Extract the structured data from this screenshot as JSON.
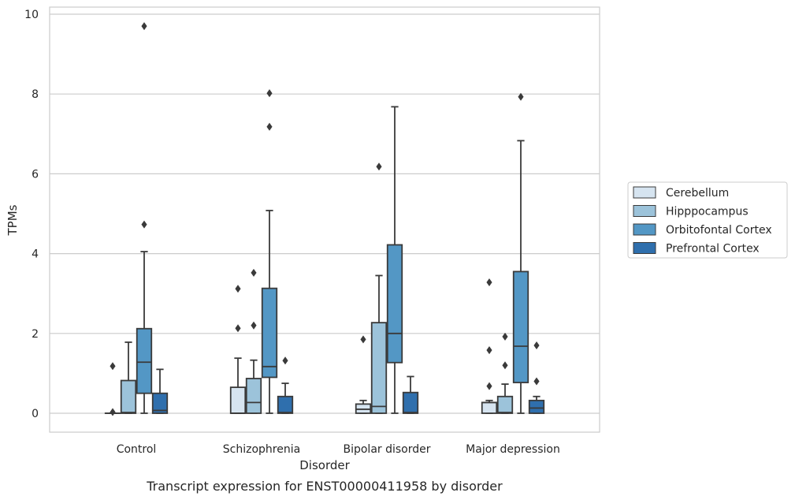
{
  "chart_data": {
    "type": "box",
    "title": "",
    "caption": "Transcript expression for ENST00000411958 by disorder",
    "xlabel": "Disorder",
    "ylabel": "TPMs",
    "ylim": [
      -0.45,
      10.2
    ],
    "yticks": [
      0,
      2,
      4,
      6,
      8,
      10
    ],
    "grid": "horizontal",
    "legend_position": "right",
    "categories": [
      "Control",
      "Schizophrenia",
      "Bipolar disorder",
      "Major depression"
    ],
    "series": [
      {
        "name": "Cerebellum",
        "color": "#d6e4f0",
        "boxes": [
          {
            "min": 0,
            "q1": 0,
            "median": 0,
            "q3": 0,
            "max": 0,
            "outliers": [
              1.18,
              0.03
            ]
          },
          {
            "min": 0,
            "q1": 0,
            "median": 0,
            "q3": 0.65,
            "max": 1.38,
            "outliers": [
              3.12,
              2.13
            ]
          },
          {
            "min": 0,
            "q1": 0,
            "median": 0.1,
            "q3": 0.23,
            "max": 0.32,
            "outliers": [
              1.85
            ]
          },
          {
            "min": 0,
            "q1": 0,
            "median": 0.27,
            "q3": 0.27,
            "max": 0.32,
            "outliers": [
              3.28,
              1.58,
              0.68
            ]
          }
        ]
      },
      {
        "name": "Hipppocampus",
        "color": "#9cc3da",
        "boxes": [
          {
            "min": 0,
            "q1": 0,
            "median": 0.02,
            "q3": 0.82,
            "max": 1.78,
            "outliers": []
          },
          {
            "min": 0,
            "q1": 0,
            "median": 0.27,
            "q3": 0.87,
            "max": 1.33,
            "outliers": [
              3.52,
              2.2
            ]
          },
          {
            "min": 0,
            "q1": 0,
            "median": 0.17,
            "q3": 2.27,
            "max": 3.45,
            "outliers": [
              6.18
            ]
          },
          {
            "min": 0,
            "q1": 0,
            "median": 0.02,
            "q3": 0.42,
            "max": 0.73,
            "outliers": [
              1.92,
              1.2
            ]
          }
        ]
      },
      {
        "name": "Orbitofontal Cortex",
        "color": "#5397c5",
        "boxes": [
          {
            "min": 0,
            "q1": 0.5,
            "median": 1.28,
            "q3": 2.12,
            "max": 4.05,
            "outliers": [
              9.7,
              4.73
            ]
          },
          {
            "min": 0,
            "q1": 0.9,
            "median": 1.17,
            "q3": 3.13,
            "max": 5.08,
            "outliers": [
              8.02,
              7.18
            ]
          },
          {
            "min": 0,
            "q1": 1.27,
            "median": 2.0,
            "q3": 4.22,
            "max": 7.68,
            "outliers": []
          },
          {
            "min": 0,
            "q1": 0.77,
            "median": 1.68,
            "q3": 3.55,
            "max": 6.83,
            "outliers": [
              7.93
            ]
          }
        ]
      },
      {
        "name": "Prefrontal Cortex",
        "color": "#2f6fad",
        "boxes": [
          {
            "min": 0,
            "q1": 0,
            "median": 0.07,
            "q3": 0.5,
            "max": 1.1,
            "outliers": []
          },
          {
            "min": 0,
            "q1": 0,
            "median": 0.02,
            "q3": 0.42,
            "max": 0.75,
            "outliers": [
              1.32
            ]
          },
          {
            "min": 0,
            "q1": 0,
            "median": 0.02,
            "q3": 0.52,
            "max": 0.92,
            "outliers": []
          },
          {
            "min": 0,
            "q1": 0,
            "median": 0.13,
            "q3": 0.32,
            "max": 0.42,
            "outliers": [
              1.7,
              0.8
            ]
          }
        ]
      }
    ]
  }
}
